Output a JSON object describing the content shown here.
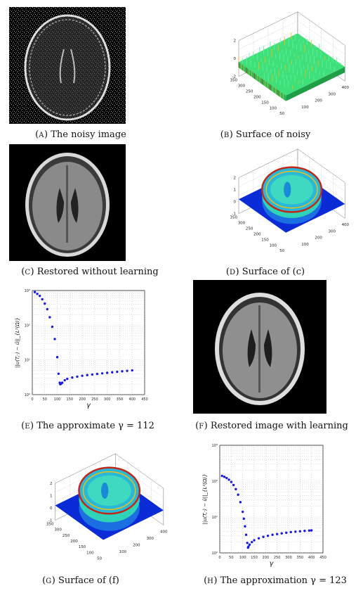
{
  "figure": {
    "panels": [
      {
        "tag": "A",
        "caption": "The noisy image"
      },
      {
        "tag": "B",
        "caption": "Surface of noisy"
      },
      {
        "tag": "C",
        "caption": "Restored without learning"
      },
      {
        "tag": "D",
        "caption": "Surface of (c)"
      },
      {
        "tag": "E",
        "caption": "The approximate γ = 112"
      },
      {
        "tag": "F",
        "caption": "Restored image with learning"
      },
      {
        "tag": "G",
        "caption": "Surface of (f)"
      },
      {
        "tag": "H",
        "caption": "The approximation γ = 123"
      }
    ],
    "surface_b": {
      "z_ticks": [
        "2",
        "0",
        "-2"
      ],
      "y_ticks": [
        "350",
        "300",
        "250",
        "200",
        "150",
        "100",
        "50"
      ],
      "x_ticks": [
        "100",
        "200",
        "300",
        "400"
      ]
    },
    "surface_d": {
      "z_ticks": [
        "2",
        "1",
        "0",
        "-1"
      ],
      "y_ticks": [
        "350",
        "300",
        "250",
        "200",
        "150",
        "100",
        "50"
      ],
      "x_ticks": [
        "100",
        "200",
        "300",
        "400"
      ]
    },
    "surface_g": {
      "z_ticks": [
        "2",
        "1",
        "0",
        "-1"
      ],
      "y_ticks": [
        "350",
        "300",
        "250",
        "200",
        "150",
        "100",
        "50"
      ],
      "x_ticks": [
        "100",
        "200",
        "300",
        "400"
      ]
    },
    "colors": {
      "surface_low": "#0a2bd6",
      "surface_mid": "#2fd3b8",
      "surface_high": "#e8c01a",
      "surface_peak": "#c0281a",
      "plot_dots": "#1a1ae0"
    }
  },
  "chart_data": [
    {
      "type": "scatter",
      "title": "",
      "xlabel": "γ",
      "ylabel": "||u(T,·) − ũ||_{L²(Ω)}",
      "x_ticks": [
        "0",
        "50",
        "100",
        "150",
        "200",
        "250",
        "300",
        "350",
        "400",
        "450"
      ],
      "y_ticks": [
        "10³",
        "10²",
        "10¹",
        "10⁰"
      ],
      "xlim": [
        0,
        450
      ],
      "yscale": "log",
      "ylim": [
        1,
        1000
      ],
      "series": [
        {
          "x": [
            10,
            20,
            30,
            40,
            50,
            60,
            70,
            80,
            90,
            100,
            105,
            110,
            112,
            115,
            120,
            130,
            140,
            160,
            180,
            200,
            220,
            240,
            260,
            280,
            300,
            320,
            340,
            360,
            380,
            400
          ],
          "y": [
            900,
            800,
            700,
            560,
            420,
            290,
            170,
            90,
            40,
            12,
            4,
            2.2,
            2.0,
            2.05,
            2.2,
            2.6,
            2.85,
            3.1,
            3.3,
            3.5,
            3.65,
            3.8,
            3.95,
            4.1,
            4.25,
            4.4,
            4.55,
            4.7,
            4.85,
            5.0
          ]
        }
      ]
    },
    {
      "type": "scatter",
      "title": "",
      "xlabel": "γ",
      "ylabel": "||u(T,·) − ũ||_{L²(Ω)}",
      "x_ticks": [
        "0",
        "50",
        "100",
        "150",
        "200",
        "250",
        "300",
        "350",
        "400",
        "450"
      ],
      "y_ticks": [
        "10³",
        "10²",
        "10¹",
        "10⁰"
      ],
      "xlim": [
        0,
        450
      ],
      "yscale": "log",
      "ylim": [
        1,
        1000
      ],
      "series": [
        {
          "x": [
            10,
            20,
            30,
            40,
            50,
            60,
            70,
            80,
            90,
            100,
            105,
            110,
            115,
            120,
            123,
            125,
            130,
            140,
            150,
            170,
            190,
            210,
            230,
            250,
            270,
            290,
            310,
            330,
            350,
            370,
            390,
            400
          ],
          "y": [
            140,
            132,
            122,
            110,
            95,
            78,
            60,
            42,
            26,
            14,
            9,
            5.5,
            3.2,
            1.9,
            1.4,
            1.5,
            1.7,
            2.0,
            2.25,
            2.55,
            2.8,
            3.0,
            3.2,
            3.35,
            3.5,
            3.65,
            3.8,
            3.9,
            4.0,
            4.1,
            4.2,
            4.25
          ]
        }
      ]
    }
  ]
}
